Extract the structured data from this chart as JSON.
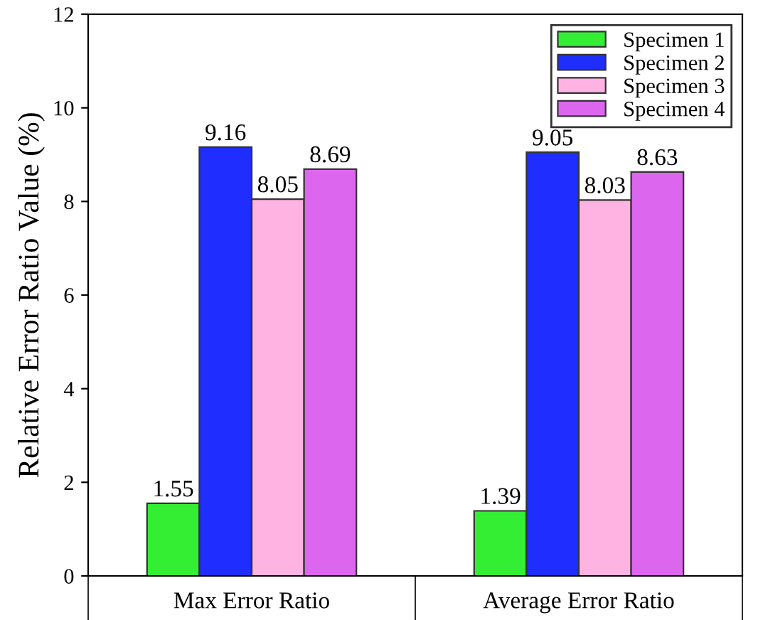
{
  "chart_data": {
    "type": "bar",
    "ylabel": "Relative Error Ratio Value (%)",
    "categories": [
      "Max Error Ratio",
      "Average Error Ratio"
    ],
    "series": [
      {
        "name": "Specimen 1",
        "color": "#33ee33",
        "values": [
          1.55,
          1.39
        ]
      },
      {
        "name": "Specimen 2",
        "color": "#1f2eff",
        "values": [
          9.16,
          9.05
        ]
      },
      {
        "name": "Specimen 3",
        "color": "#ffb3e3",
        "values": [
          8.05,
          8.03
        ]
      },
      {
        "name": "Specimen 4",
        "color": "#dd66ee",
        "values": [
          8.69,
          8.63
        ]
      }
    ],
    "ylim": [
      0,
      12
    ],
    "yticks": [
      0,
      2,
      4,
      6,
      8,
      10,
      12
    ],
    "data_labels": true,
    "legend": "top right",
    "grid": false
  }
}
